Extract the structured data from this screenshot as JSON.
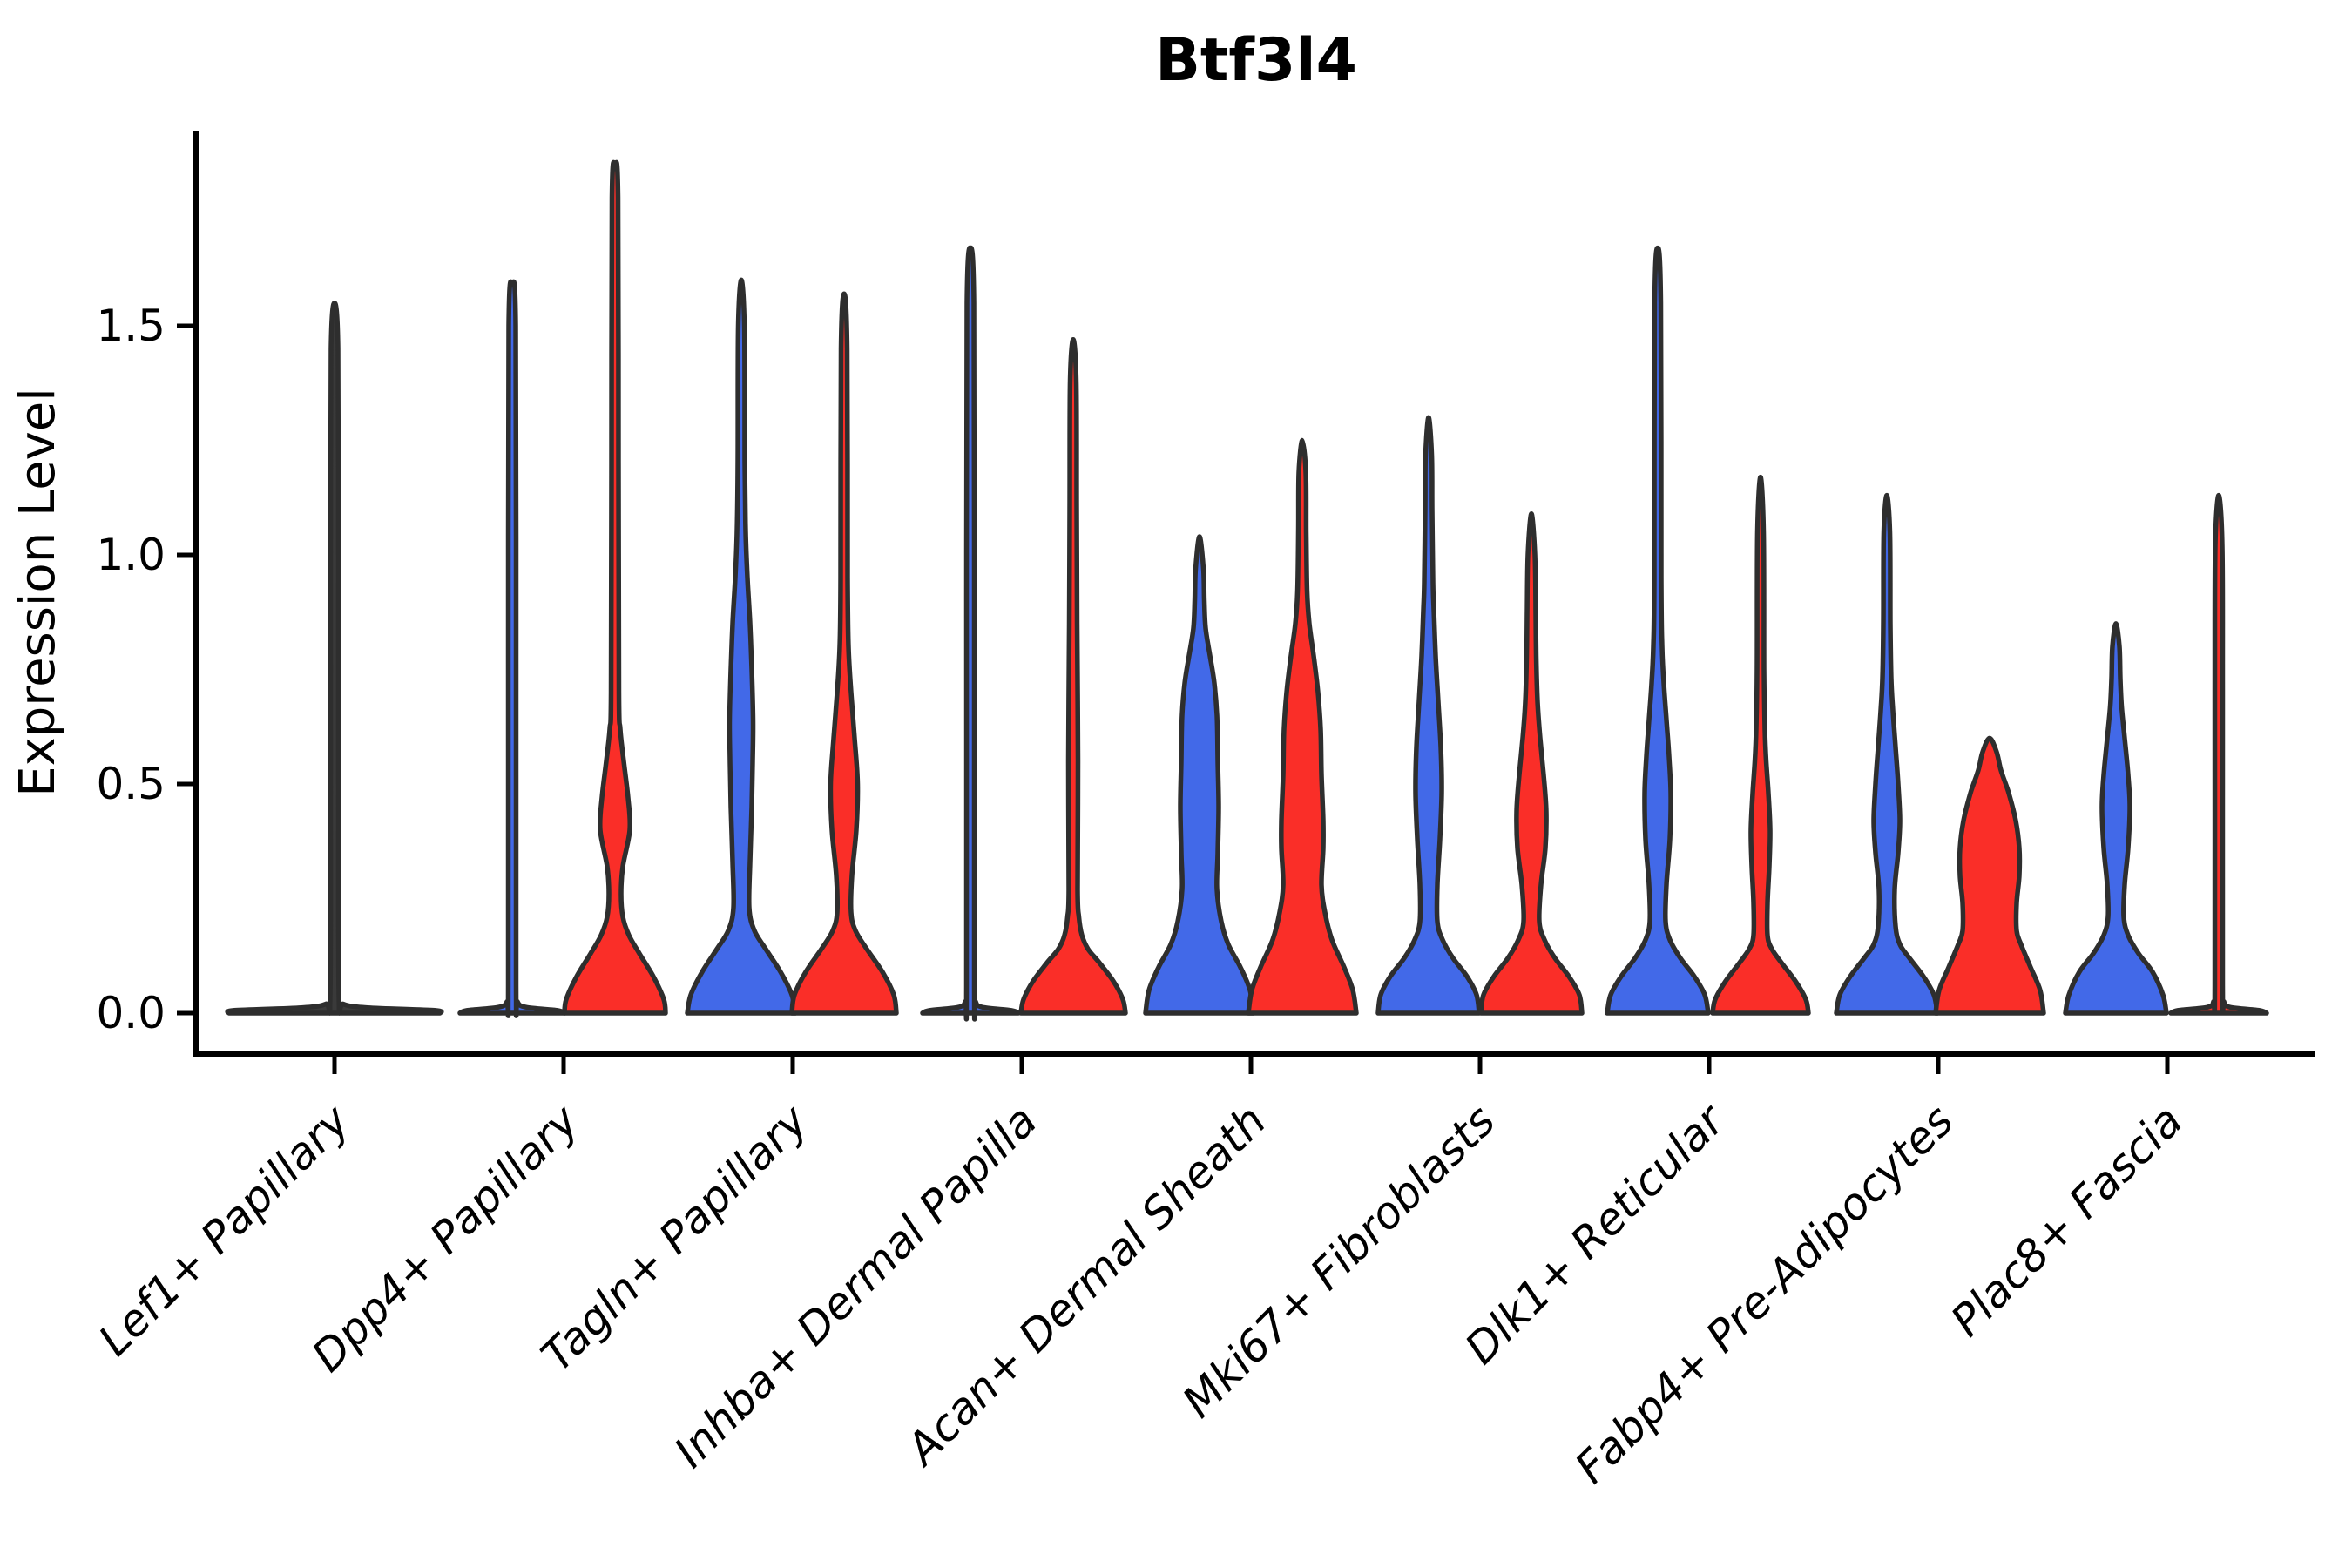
{
  "title": "Btf3l4",
  "axes": {
    "ylabel": "Expression Level",
    "ytick_labels": [
      "0.0",
      "0.5",
      "1.0",
      "1.5"
    ]
  },
  "chart_data": {
    "type": "violin",
    "title": "Btf3l4",
    "xlabel": "",
    "ylabel": "Expression Level",
    "ylim": [
      -0.09,
      1.93
    ],
    "yticks": [
      0.0,
      0.5,
      1.0,
      1.5
    ],
    "grid": false,
    "legend": "none",
    "split_groups": [
      {
        "id": "blue",
        "color": "#4269E8"
      },
      {
        "id": "red",
        "color": "#FA2E28"
      }
    ],
    "outline_color": "#2E2E2E",
    "categories": [
      "Lef1+ Papillary",
      "Dpp4+ Papillary",
      "Tagln+ Papillary",
      "Inhba+ Dermal Papilla",
      "Acan+ Dermal Sheath",
      "Mki67+ Fibroblasts",
      "Dlk1+ Reticular",
      "Fabp4+ Pre-Adipocytes",
      "Plac8+ Fascia"
    ],
    "violins": [
      {
        "category_index": 0,
        "group": "single",
        "color": "#3A3A3A",
        "max_expression": 1.55,
        "profile": [
          [
            0,
            121
          ],
          [
            0.006,
            115
          ],
          [
            0.012,
            38
          ],
          [
            0.02,
            10
          ],
          [
            0.04,
            5
          ],
          [
            0.5,
            4.5
          ],
          [
            1.0,
            4.5
          ],
          [
            1.45,
            4
          ],
          [
            1.55,
            0
          ]
        ]
      },
      {
        "category_index": 1,
        "group": "blue",
        "color": "#4269E8",
        "max_expression": 1.59,
        "profile": [
          [
            0,
            60
          ],
          [
            0.006,
            52
          ],
          [
            0.013,
            16
          ],
          [
            0.025,
            6
          ],
          [
            0.06,
            4.5
          ],
          [
            0.8,
            4.5
          ],
          [
            1.5,
            4
          ],
          [
            1.59,
            0
          ]
        ]
      },
      {
        "category_index": 1,
        "group": "red",
        "color": "#FA2E28",
        "max_expression": 1.85,
        "profile": [
          [
            0,
            58
          ],
          [
            0.03,
            56
          ],
          [
            0.08,
            44
          ],
          [
            0.13,
            28
          ],
          [
            0.17,
            16
          ],
          [
            0.21,
            9
          ],
          [
            0.26,
            7
          ],
          [
            0.32,
            9
          ],
          [
            0.4,
            17
          ],
          [
            0.47,
            15
          ],
          [
            0.55,
            10
          ],
          [
            0.62,
            6
          ],
          [
            0.7,
            4.5
          ],
          [
            1.2,
            4
          ],
          [
            1.78,
            3.5
          ],
          [
            1.85,
            0
          ]
        ]
      },
      {
        "category_index": 2,
        "group": "blue",
        "color": "#4269E8",
        "max_expression": 1.6,
        "profile": [
          [
            0,
            62
          ],
          [
            0.04,
            58
          ],
          [
            0.09,
            45
          ],
          [
            0.14,
            28
          ],
          [
            0.18,
            15
          ],
          [
            0.23,
            9
          ],
          [
            0.33,
            10
          ],
          [
            0.45,
            12
          ],
          [
            0.55,
            13
          ],
          [
            0.64,
            13.5
          ],
          [
            0.75,
            12
          ],
          [
            0.85,
            10
          ],
          [
            0.95,
            7
          ],
          [
            1.05,
            5
          ],
          [
            1.2,
            4
          ],
          [
            1.5,
            3.5
          ],
          [
            1.6,
            0
          ]
        ]
      },
      {
        "category_index": 2,
        "group": "red",
        "color": "#FA2E28",
        "max_expression": 1.57,
        "profile": [
          [
            0,
            60
          ],
          [
            0.04,
            57
          ],
          [
            0.09,
            44
          ],
          [
            0.14,
            26
          ],
          [
            0.18,
            13
          ],
          [
            0.22,
            8
          ],
          [
            0.3,
            9
          ],
          [
            0.4,
            14
          ],
          [
            0.5,
            15.5
          ],
          [
            0.6,
            12
          ],
          [
            0.7,
            8
          ],
          [
            0.8,
            5
          ],
          [
            0.95,
            4
          ],
          [
            1.45,
            3.5
          ],
          [
            1.57,
            0
          ]
        ]
      },
      {
        "category_index": 3,
        "group": "blue",
        "color": "#4269E8",
        "max_expression": 1.67,
        "profile": [
          [
            0,
            55
          ],
          [
            0.006,
            47
          ],
          [
            0.013,
            14
          ],
          [
            0.025,
            6
          ],
          [
            0.06,
            4.5
          ],
          [
            0.9,
            4.5
          ],
          [
            1.55,
            4
          ],
          [
            1.67,
            0
          ]
        ]
      },
      {
        "category_index": 3,
        "group": "red",
        "color": "#FA2E28",
        "max_expression": 1.47,
        "profile": [
          [
            0,
            60
          ],
          [
            0.03,
            57
          ],
          [
            0.07,
            46
          ],
          [
            0.11,
            30
          ],
          [
            0.14,
            17
          ],
          [
            0.17,
            10
          ],
          [
            0.21,
            6.5
          ],
          [
            0.27,
            5
          ],
          [
            0.55,
            5.5
          ],
          [
            0.85,
            4.5
          ],
          [
            1.1,
            4
          ],
          [
            1.38,
            3.5
          ],
          [
            1.47,
            0
          ]
        ]
      },
      {
        "category_index": 4,
        "group": "blue",
        "color": "#4269E8",
        "max_expression": 1.04,
        "profile": [
          [
            0,
            62
          ],
          [
            0.05,
            58
          ],
          [
            0.1,
            47
          ],
          [
            0.15,
            33
          ],
          [
            0.2,
            25
          ],
          [
            0.27,
            20
          ],
          [
            0.35,
            21
          ],
          [
            0.45,
            22
          ],
          [
            0.55,
            21
          ],
          [
            0.65,
            20
          ],
          [
            0.72,
            17
          ],
          [
            0.78,
            12
          ],
          [
            0.84,
            7
          ],
          [
            0.9,
            5.5
          ],
          [
            0.97,
            4.5
          ],
          [
            1.04,
            0
          ]
        ]
      },
      {
        "category_index": 4,
        "group": "red",
        "color": "#FA2E28",
        "max_expression": 1.25,
        "profile": [
          [
            0,
            62
          ],
          [
            0.05,
            58
          ],
          [
            0.1,
            48
          ],
          [
            0.16,
            34
          ],
          [
            0.22,
            26
          ],
          [
            0.28,
            22
          ],
          [
            0.36,
            24
          ],
          [
            0.42,
            24
          ],
          [
            0.52,
            22
          ],
          [
            0.62,
            21
          ],
          [
            0.7,
            18
          ],
          [
            0.78,
            13
          ],
          [
            0.85,
            8
          ],
          [
            0.92,
            5.5
          ],
          [
            1.05,
            4.5
          ],
          [
            1.18,
            4
          ],
          [
            1.25,
            0
          ]
        ]
      },
      {
        "category_index": 5,
        "group": "blue",
        "color": "#4269E8",
        "max_expression": 1.3,
        "profile": [
          [
            0,
            58
          ],
          [
            0.04,
            55
          ],
          [
            0.08,
            44
          ],
          [
            0.12,
            28
          ],
          [
            0.16,
            16
          ],
          [
            0.2,
            10
          ],
          [
            0.28,
            10
          ],
          [
            0.38,
            13
          ],
          [
            0.48,
            15
          ],
          [
            0.58,
            14
          ],
          [
            0.68,
            11
          ],
          [
            0.78,
            8
          ],
          [
            0.88,
            6
          ],
          [
            0.94,
            5
          ],
          [
            1.1,
            4
          ],
          [
            1.22,
            3.5
          ],
          [
            1.3,
            0
          ]
        ]
      },
      {
        "category_index": 5,
        "group": "red",
        "color": "#FA2E28",
        "max_expression": 1.09,
        "profile": [
          [
            0,
            58
          ],
          [
            0.04,
            55
          ],
          [
            0.08,
            43
          ],
          [
            0.12,
            27
          ],
          [
            0.16,
            15
          ],
          [
            0.2,
            9
          ],
          [
            0.28,
            11
          ],
          [
            0.36,
            16
          ],
          [
            0.44,
            17
          ],
          [
            0.52,
            14
          ],
          [
            0.6,
            10
          ],
          [
            0.68,
            7
          ],
          [
            0.78,
            5.5
          ],
          [
            0.87,
            5
          ],
          [
            1.0,
            4
          ],
          [
            1.09,
            0
          ]
        ]
      },
      {
        "category_index": 6,
        "group": "blue",
        "color": "#4269E8",
        "max_expression": 1.67,
        "profile": [
          [
            0,
            58
          ],
          [
            0.04,
            54
          ],
          [
            0.08,
            42
          ],
          [
            0.12,
            26
          ],
          [
            0.16,
            14
          ],
          [
            0.2,
            9
          ],
          [
            0.28,
            10
          ],
          [
            0.38,
            14
          ],
          [
            0.48,
            15
          ],
          [
            0.56,
            13
          ],
          [
            0.64,
            10
          ],
          [
            0.72,
            7
          ],
          [
            0.8,
            5
          ],
          [
            0.95,
            4
          ],
          [
            1.55,
            3.5
          ],
          [
            1.67,
            0
          ]
        ]
      },
      {
        "category_index": 6,
        "group": "red",
        "color": "#FA2E28",
        "max_expression": 1.17,
        "profile": [
          [
            0,
            55
          ],
          [
            0.03,
            52
          ],
          [
            0.07,
            40
          ],
          [
            0.11,
            24
          ],
          [
            0.14,
            13
          ],
          [
            0.17,
            8
          ],
          [
            0.24,
            8
          ],
          [
            0.32,
            10
          ],
          [
            0.4,
            11
          ],
          [
            0.48,
            9
          ],
          [
            0.55,
            6.5
          ],
          [
            0.62,
            5
          ],
          [
            0.75,
            4
          ],
          [
            1.05,
            3.5
          ],
          [
            1.17,
            0
          ]
        ]
      },
      {
        "category_index": 7,
        "group": "blue",
        "color": "#4269E8",
        "max_expression": 1.13,
        "profile": [
          [
            0,
            58
          ],
          [
            0.04,
            54
          ],
          [
            0.08,
            42
          ],
          [
            0.12,
            26
          ],
          [
            0.15,
            15
          ],
          [
            0.19,
            10
          ],
          [
            0.27,
            9
          ],
          [
            0.35,
            13
          ],
          [
            0.42,
            15
          ],
          [
            0.5,
            13
          ],
          [
            0.58,
            10
          ],
          [
            0.66,
            7
          ],
          [
            0.73,
            5
          ],
          [
            0.85,
            4
          ],
          [
            1.05,
            3.5
          ],
          [
            1.13,
            0
          ]
        ]
      },
      {
        "category_index": 7,
        "group": "red",
        "color": "#FA2E28",
        "max_expression": 0.6,
        "profile": [
          [
            0,
            62
          ],
          [
            0.05,
            58
          ],
          [
            0.1,
            47
          ],
          [
            0.15,
            36
          ],
          [
            0.18,
            31
          ],
          [
            0.24,
            31
          ],
          [
            0.3,
            34
          ],
          [
            0.36,
            34
          ],
          [
            0.42,
            30
          ],
          [
            0.48,
            22
          ],
          [
            0.53,
            13
          ],
          [
            0.57,
            8
          ],
          [
            0.6,
            0
          ]
        ]
      },
      {
        "category_index": 8,
        "group": "blue",
        "color": "#4269E8",
        "max_expression": 0.85,
        "profile": [
          [
            0,
            58
          ],
          [
            0.04,
            54
          ],
          [
            0.09,
            42
          ],
          [
            0.13,
            26
          ],
          [
            0.17,
            14
          ],
          [
            0.21,
            9
          ],
          [
            0.28,
            10
          ],
          [
            0.36,
            14
          ],
          [
            0.45,
            16
          ],
          [
            0.52,
            14
          ],
          [
            0.6,
            10
          ],
          [
            0.67,
            6.5
          ],
          [
            0.73,
            5
          ],
          [
            0.8,
            4
          ],
          [
            0.85,
            0
          ]
        ]
      },
      {
        "category_index": 8,
        "group": "red",
        "color": "#FA2E28",
        "max_expression": 1.13,
        "profile": [
          [
            0,
            55
          ],
          [
            0.006,
            47
          ],
          [
            0.013,
            13
          ],
          [
            0.025,
            6
          ],
          [
            0.06,
            4.5
          ],
          [
            0.7,
            4.5
          ],
          [
            1.02,
            4
          ],
          [
            1.13,
            0
          ]
        ]
      }
    ]
  }
}
